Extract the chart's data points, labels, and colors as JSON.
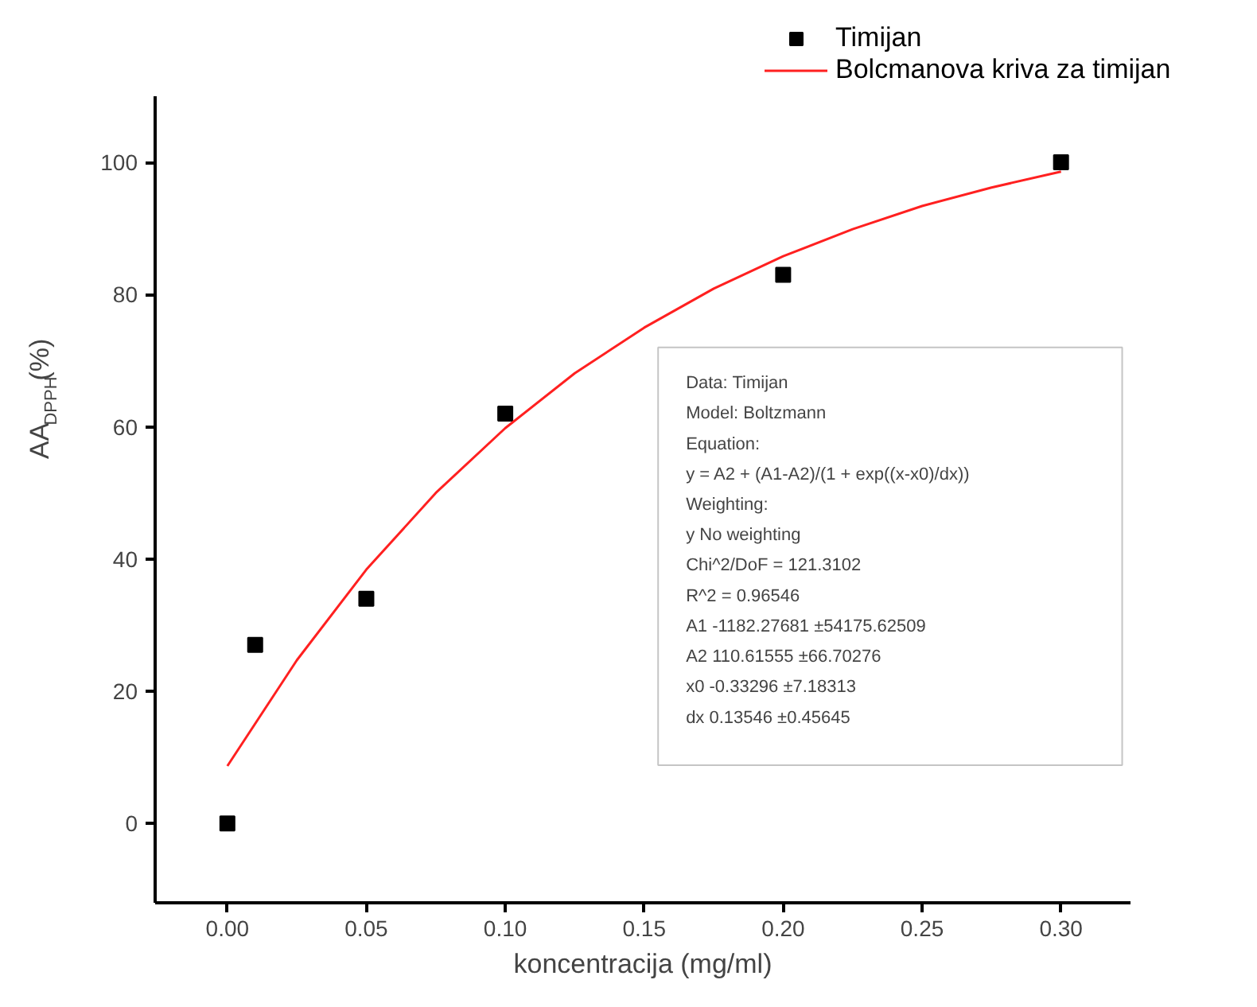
{
  "chart_data": {
    "type": "scatter",
    "xlabel": "koncentracija (mg/ml)",
    "ylabel": "AA$_{DPPH}$(%)",
    "xlim": [
      -0.026,
      0.325
    ],
    "ylim": [
      -12,
      110
    ],
    "xticks": [
      {
        "value": 0,
        "label": "0.00"
      },
      0.05,
      {
        "value": 0.1,
        "label": "0.10"
      },
      0.15,
      {
        "value": 0.2,
        "label": "0.20"
      },
      0.25,
      {
        "value": 0.3,
        "label": "0.30"
      }
    ],
    "yticks": [
      0,
      20,
      40,
      60,
      80,
      100
    ],
    "grid": false,
    "legend": "top right",
    "marker": "square",
    "series": [
      {
        "name": "Timijan",
        "color": "#000000",
        "x": [
          0,
          0.01,
          0.05,
          0.1,
          0.2,
          0.3
        ],
        "values": [
          0,
          27,
          34,
          62,
          83,
          100
        ]
      },
      {
        "name": "Bolcmanova kriva za timijan",
        "type": "line",
        "color": "#ff2020",
        "marker": "none",
        "line_style": "solid",
        "x": [
          0,
          0.025,
          0.05,
          0.075,
          0.1,
          0.125,
          0.15,
          0.175,
          0.2,
          0.225,
          0.25,
          0.275,
          0.3
        ],
        "values": [
          8.7,
          24.7,
          38.4,
          50.0,
          59.8,
          68.1,
          75.0,
          80.9,
          85.8,
          89.9,
          93.4,
          96.2,
          98.6
        ]
      }
    ],
    "annotations": [
      "Data: Timijan",
      "Model: Boltzmann",
      "Equation:",
      "y = A2 + (A1-A2)/(1 + exp((x-x0)/dx))",
      "Weighting:",
      "y          No weighting",
      "Chi^2/DoF        = 121.3102",
      "R^2     =  0.96546",
      "A1        -1182.27681      ±54175.62509",
      "A2        110.61555          ±66.70276",
      "x0        -0.33296            ±7.18313",
      "dx        0.13546             ±0.45645"
    ]
  }
}
